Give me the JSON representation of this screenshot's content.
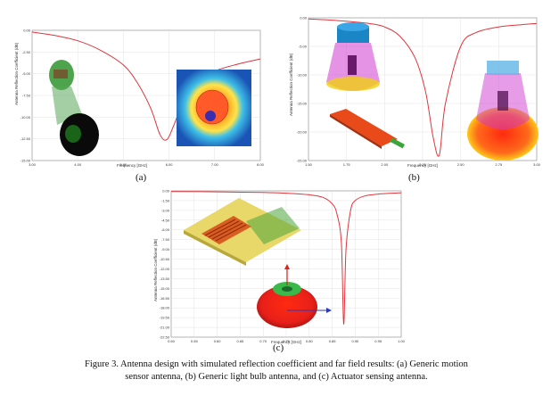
{
  "figure": {
    "caption": "Figure 3. Antenna design with simulated reflection coefficient and far field results: (a) Generic motion sensor antenna, (b) Generic light bulb antenna, and (c) Actuator sensing antenna.",
    "line_color": "#e0353c",
    "grid_color": "#dcdcdc"
  },
  "chart_data": [
    {
      "panel_label": "(a)",
      "type": "line",
      "xlabel": "Frequency [GHz]",
      "ylabel": "Antenna Reflection Coefficient (dB)",
      "xlim": [
        3.0,
        8.0
      ],
      "ylim": [
        -15.0,
        0.0
      ],
      "xticks": [
        "3.00",
        "4.00",
        "5.00",
        "6.00",
        "7.00",
        "8.00"
      ],
      "yticks": [
        "0.00",
        "-2.50",
        "-5.00",
        "-7.50",
        "-10.00",
        "-12.50",
        "-15.00"
      ],
      "series": [
        {
          "x": [
            3.0,
            3.5,
            4.0,
            4.5,
            5.0,
            5.3,
            5.6,
            5.8,
            5.95,
            6.1,
            6.3,
            6.6,
            7.0,
            7.5,
            8.0
          ],
          "y": [
            -0.2,
            -0.6,
            -1.2,
            -2.3,
            -4.0,
            -6.0,
            -9.0,
            -12.0,
            -12.6,
            -11.0,
            -8.4,
            -6.0,
            -4.7,
            -3.9,
            -3.3
          ]
        }
      ]
    },
    {
      "panel_label": "(b)",
      "type": "line",
      "xlabel": "Frequency [GHz]",
      "ylabel": "Antenna Reflection Coefficient (dB)",
      "xlim": [
        1.5,
        3.0
      ],
      "ylim": [
        -25.0,
        0.0
      ],
      "xticks": [
        "1.50",
        "1.75",
        "2.00",
        "2.25",
        "2.50",
        "2.75",
        "3.00"
      ],
      "yticks": [
        "0.00",
        "-5.00",
        "-10.00",
        "-15.00",
        "-20.00",
        "-25.00"
      ],
      "series": [
        {
          "x": [
            1.5,
            1.7,
            1.9,
            2.0,
            2.1,
            2.2,
            2.27,
            2.32,
            2.36,
            2.4,
            2.5,
            2.6,
            2.75,
            2.9,
            3.0
          ],
          "y": [
            -0.2,
            -0.5,
            -1.0,
            -1.6,
            -3.2,
            -7.0,
            -13.0,
            -21.0,
            -24.0,
            -15.0,
            -5.0,
            -2.6,
            -1.6,
            -1.2,
            -1.0
          ]
        }
      ]
    },
    {
      "panel_label": "(c)",
      "type": "line",
      "xlabel": "Frequency [GHz]",
      "ylabel": "Antenna Reflection Coefficient (dB)",
      "xlim": [
        0.5,
        1.0
      ],
      "ylim": [
        -22.5,
        0.0
      ],
      "xticks": [
        "0.50",
        "0.55",
        "0.60",
        "0.65",
        "0.70",
        "0.75",
        "0.80",
        "0.85",
        "0.90",
        "0.95",
        "1.00"
      ],
      "yticks": [
        "0.00",
        "-1.50",
        "-3.00",
        "-4.50",
        "-6.00",
        "-7.50",
        "-9.00",
        "-10.50",
        "-12.00",
        "-13.50",
        "-15.00",
        "-16.50",
        "-18.00",
        "-19.50",
        "-21.00",
        "-22.50"
      ],
      "series": [
        {
          "x": [
            0.5,
            0.6,
            0.7,
            0.75,
            0.8,
            0.83,
            0.85,
            0.86,
            0.87,
            0.875,
            0.88,
            0.89,
            0.9,
            0.92,
            0.95,
            1.0
          ],
          "y": [
            -0.1,
            -0.15,
            -0.25,
            -0.35,
            -0.6,
            -1.0,
            -2.0,
            -3.5,
            -8.0,
            -20.5,
            -9.0,
            -3.0,
            -1.5,
            -0.8,
            -0.5,
            -0.3
          ]
        }
      ]
    }
  ]
}
